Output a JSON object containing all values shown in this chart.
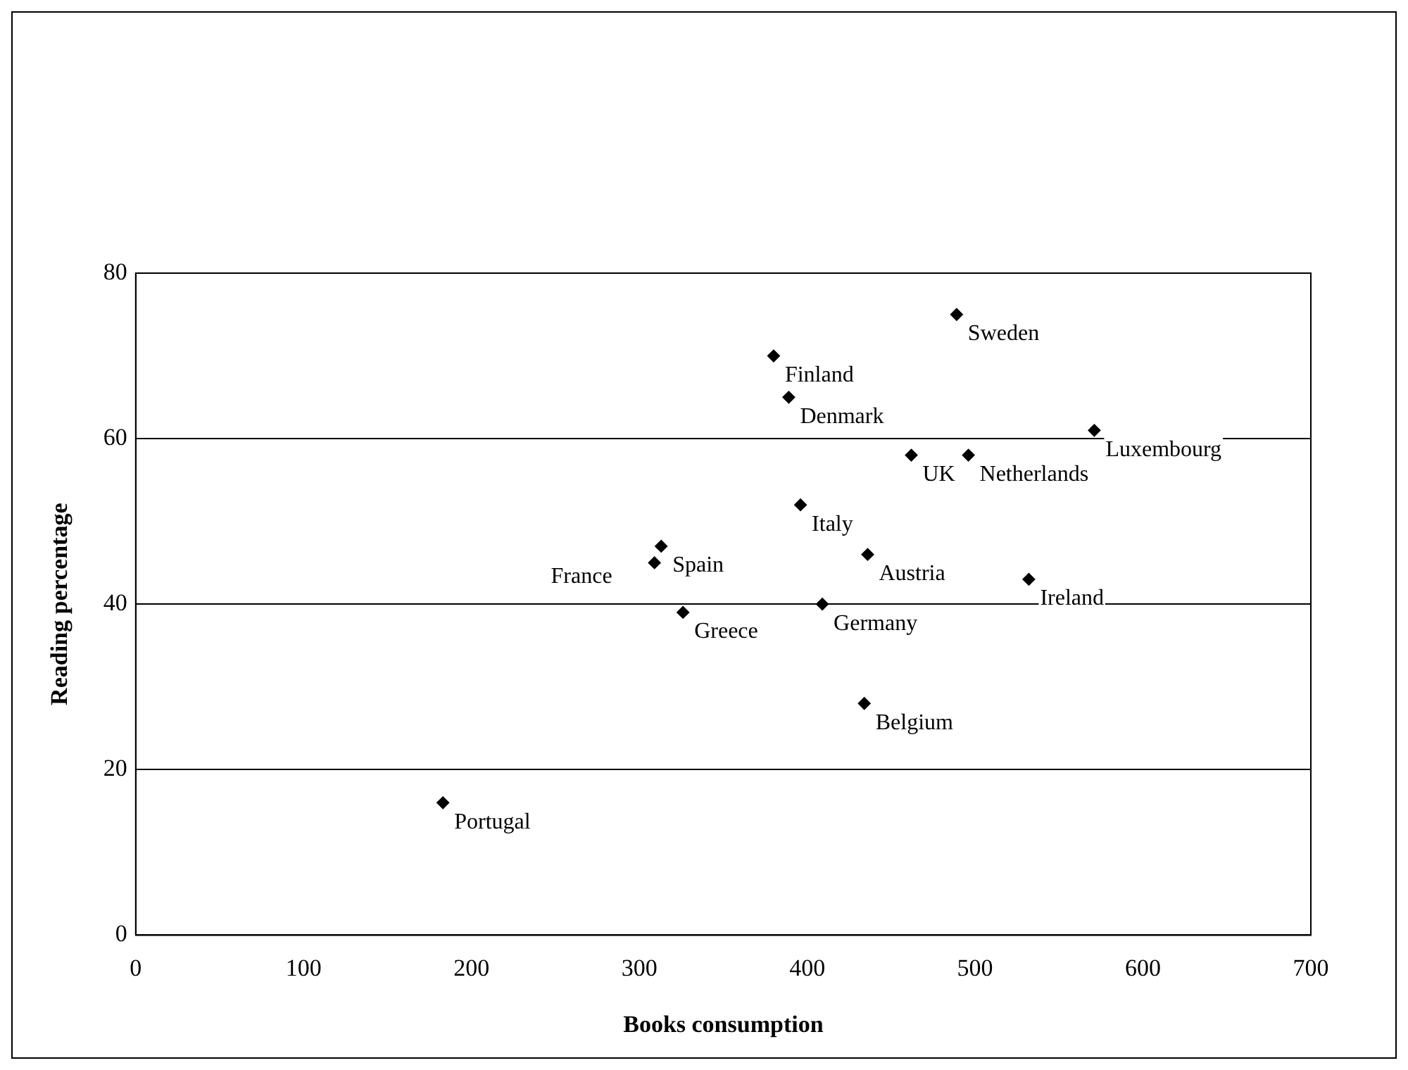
{
  "chart_data": {
    "type": "scatter",
    "xlabel": "Books consumption",
    "ylabel": "Reading percentage",
    "x": [
      489,
      380,
      389,
      571,
      462,
      496,
      396,
      313,
      309,
      436,
      532,
      409,
      326,
      434,
      183
    ],
    "values": [
      75,
      70,
      65,
      61,
      58,
      58,
      52,
      47,
      45,
      46,
      43,
      40,
      39,
      28,
      16
    ],
    "color": "#000000",
    "marker": "diamond",
    "grid": "y",
    "legend": false,
    "xlim": [
      0,
      700
    ],
    "xticks": [
      0,
      100,
      200,
      300,
      400,
      500,
      600,
      700
    ],
    "ylim": [
      0,
      80
    ],
    "yticks": [
      0,
      20,
      40,
      60,
      80
    ],
    "annotations": [
      {
        "text": "Sweden",
        "x": 489,
        "y": 75
      },
      {
        "text": "Finland",
        "x": 380,
        "y": 70
      },
      {
        "text": "Denmark",
        "x": 389,
        "y": 65
      },
      {
        "text": "Luxembourg",
        "x": 571,
        "y": 61
      },
      {
        "text": "UK",
        "x": 462,
        "y": 58
      },
      {
        "text": "Netherlands",
        "x": 496,
        "y": 58
      },
      {
        "text": "Italy",
        "x": 396,
        "y": 52
      },
      {
        "text": "Spain",
        "x": 313,
        "y": 47
      },
      {
        "text": "France",
        "x": 309,
        "y": 45
      },
      {
        "text": "Austria",
        "x": 436,
        "y": 46
      },
      {
        "text": "Ireland",
        "x": 532,
        "y": 43
      },
      {
        "text": "Germany",
        "x": 409,
        "y": 40
      },
      {
        "text": "Greece",
        "x": 326,
        "y": 39
      },
      {
        "text": "Belgium",
        "x": 434,
        "y": 28
      },
      {
        "text": "Portugal",
        "x": 183,
        "y": 16
      }
    ]
  }
}
